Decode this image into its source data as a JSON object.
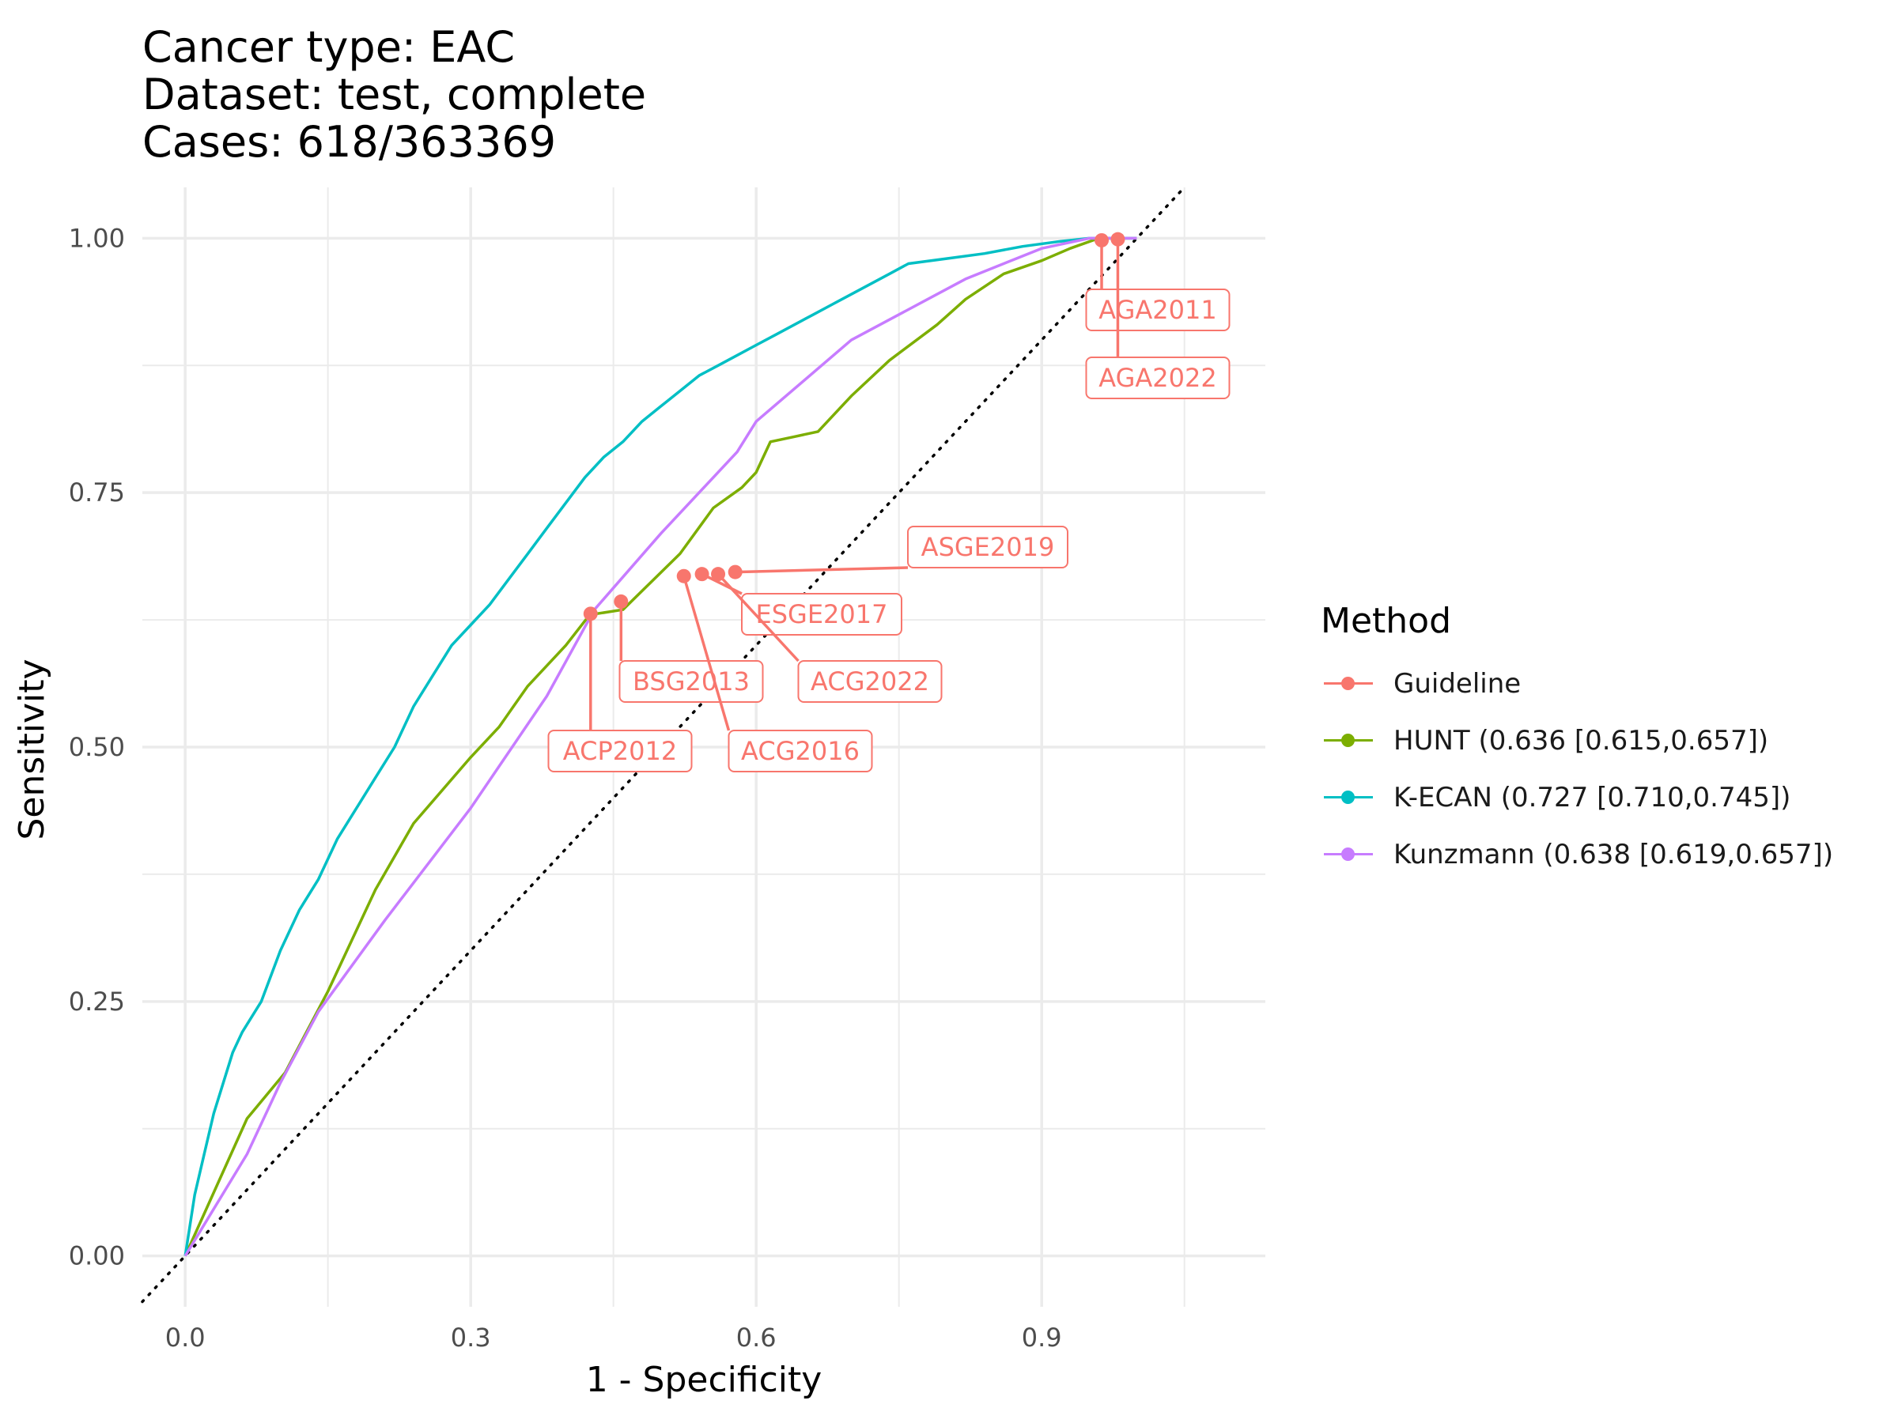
{
  "title": {
    "line1": "Cancer type: EAC",
    "line2": "Dataset: test, complete",
    "line3": "Cases: 618/363369"
  },
  "colors": {
    "guideline": "#F8766D",
    "hunt": "#7CAE00",
    "kecan": "#00BFC4",
    "kunzmann": "#C77CFF",
    "grid": "#ebebeb"
  },
  "legend": {
    "title": "Method",
    "items": [
      {
        "label": "Guideline",
        "color": "#F8766D"
      },
      {
        "label": "HUNT (0.636 [0.615,0.657])",
        "color": "#7CAE00"
      },
      {
        "label": "K-ECAN (0.727 [0.710,0.745])",
        "color": "#00BFC4"
      },
      {
        "label": "Kunzmann (0.638 [0.619,0.657])",
        "color": "#C77CFF"
      }
    ]
  },
  "chart_data": {
    "type": "line",
    "title": "Cancer type: EAC\nDataset: test, complete\nCases: 618/363369",
    "xlabel": "1 - Specificity",
    "ylabel": "Sensitivity",
    "xlim": [
      -0.045,
      1.135
    ],
    "ylim": [
      -0.05,
      1.05
    ],
    "xticks": [
      0.0,
      0.3,
      0.6,
      0.9
    ],
    "xtick_labels": [
      "0.0",
      "0.3",
      "0.6",
      "0.9"
    ],
    "yticks": [
      0.0,
      0.25,
      0.5,
      0.75,
      1.0
    ],
    "ytick_labels": [
      "0.00",
      "0.25",
      "0.50",
      "0.75",
      "1.00"
    ],
    "grid": true,
    "legend_position": "right",
    "reference_line": {
      "type": "diagonal",
      "style": "dotted",
      "color": "#000000"
    },
    "series": [
      {
        "name": "HUNT (0.636 [0.615,0.657])",
        "color": "#7CAE00",
        "x": [
          0.0,
          0.065,
          0.105,
          0.15,
          0.2,
          0.24,
          0.3,
          0.33,
          0.345,
          0.36,
          0.4,
          0.425,
          0.46,
          0.52,
          0.555,
          0.585,
          0.6,
          0.615,
          0.64,
          0.665,
          0.7,
          0.74,
          0.79,
          0.82,
          0.86,
          0.9,
          0.93,
          0.96,
          1.0
        ],
        "y": [
          0.0,
          0.135,
          0.18,
          0.26,
          0.36,
          0.425,
          0.49,
          0.52,
          0.54,
          0.56,
          0.6,
          0.63,
          0.635,
          0.69,
          0.735,
          0.755,
          0.77,
          0.8,
          0.805,
          0.81,
          0.845,
          0.88,
          0.915,
          0.94,
          0.965,
          0.978,
          0.99,
          1.0,
          1.0
        ]
      },
      {
        "name": "K-ECAN (0.727 [0.710,0.745])",
        "color": "#00BFC4",
        "x": [
          0.0,
          0.01,
          0.02,
          0.03,
          0.04,
          0.05,
          0.06,
          0.08,
          0.1,
          0.12,
          0.14,
          0.16,
          0.18,
          0.2,
          0.22,
          0.24,
          0.26,
          0.28,
          0.3,
          0.32,
          0.34,
          0.36,
          0.38,
          0.4,
          0.42,
          0.44,
          0.46,
          0.48,
          0.5,
          0.52,
          0.54,
          0.56,
          0.58,
          0.6,
          0.62,
          0.64,
          0.66,
          0.68,
          0.7,
          0.72,
          0.74,
          0.76,
          0.8,
          0.84,
          0.88,
          0.92,
          0.95,
          1.0
        ],
        "y": [
          0.0,
          0.06,
          0.1,
          0.14,
          0.17,
          0.2,
          0.22,
          0.25,
          0.3,
          0.34,
          0.37,
          0.41,
          0.44,
          0.47,
          0.5,
          0.54,
          0.57,
          0.6,
          0.62,
          0.64,
          0.665,
          0.69,
          0.715,
          0.74,
          0.765,
          0.785,
          0.8,
          0.82,
          0.835,
          0.85,
          0.865,
          0.875,
          0.885,
          0.895,
          0.905,
          0.915,
          0.925,
          0.935,
          0.945,
          0.955,
          0.965,
          0.975,
          0.98,
          0.985,
          0.992,
          0.997,
          1.0,
          1.0
        ]
      },
      {
        "name": "Kunzmann (0.638 [0.619,0.657])",
        "color": "#C77CFF",
        "x": [
          0.0,
          0.065,
          0.1,
          0.14,
          0.21,
          0.3,
          0.38,
          0.43,
          0.5,
          0.58,
          0.6,
          0.7,
          0.82,
          0.9,
          0.95,
          1.0
        ],
        "y": [
          0.0,
          0.1,
          0.17,
          0.24,
          0.33,
          0.44,
          0.55,
          0.635,
          0.71,
          0.79,
          0.82,
          0.9,
          0.96,
          0.99,
          1.0,
          1.0
        ]
      }
    ],
    "guideline_points": [
      {
        "label": "ACP2012",
        "x": 0.426,
        "y": 0.631
      },
      {
        "label": "BSG2013",
        "x": 0.458,
        "y": 0.643
      },
      {
        "label": "ACG2016",
        "x": 0.524,
        "y": 0.668
      },
      {
        "label": "ESGE2017",
        "x": 0.543,
        "y": 0.67
      },
      {
        "label": "ACG2022",
        "x": 0.56,
        "y": 0.67
      },
      {
        "label": "ASGE2019",
        "x": 0.578,
        "y": 0.672
      },
      {
        "label": "AGA2011",
        "x": 0.963,
        "y": 0.998
      },
      {
        "label": "AGA2022",
        "x": 0.98,
        "y": 0.999
      }
    ]
  }
}
